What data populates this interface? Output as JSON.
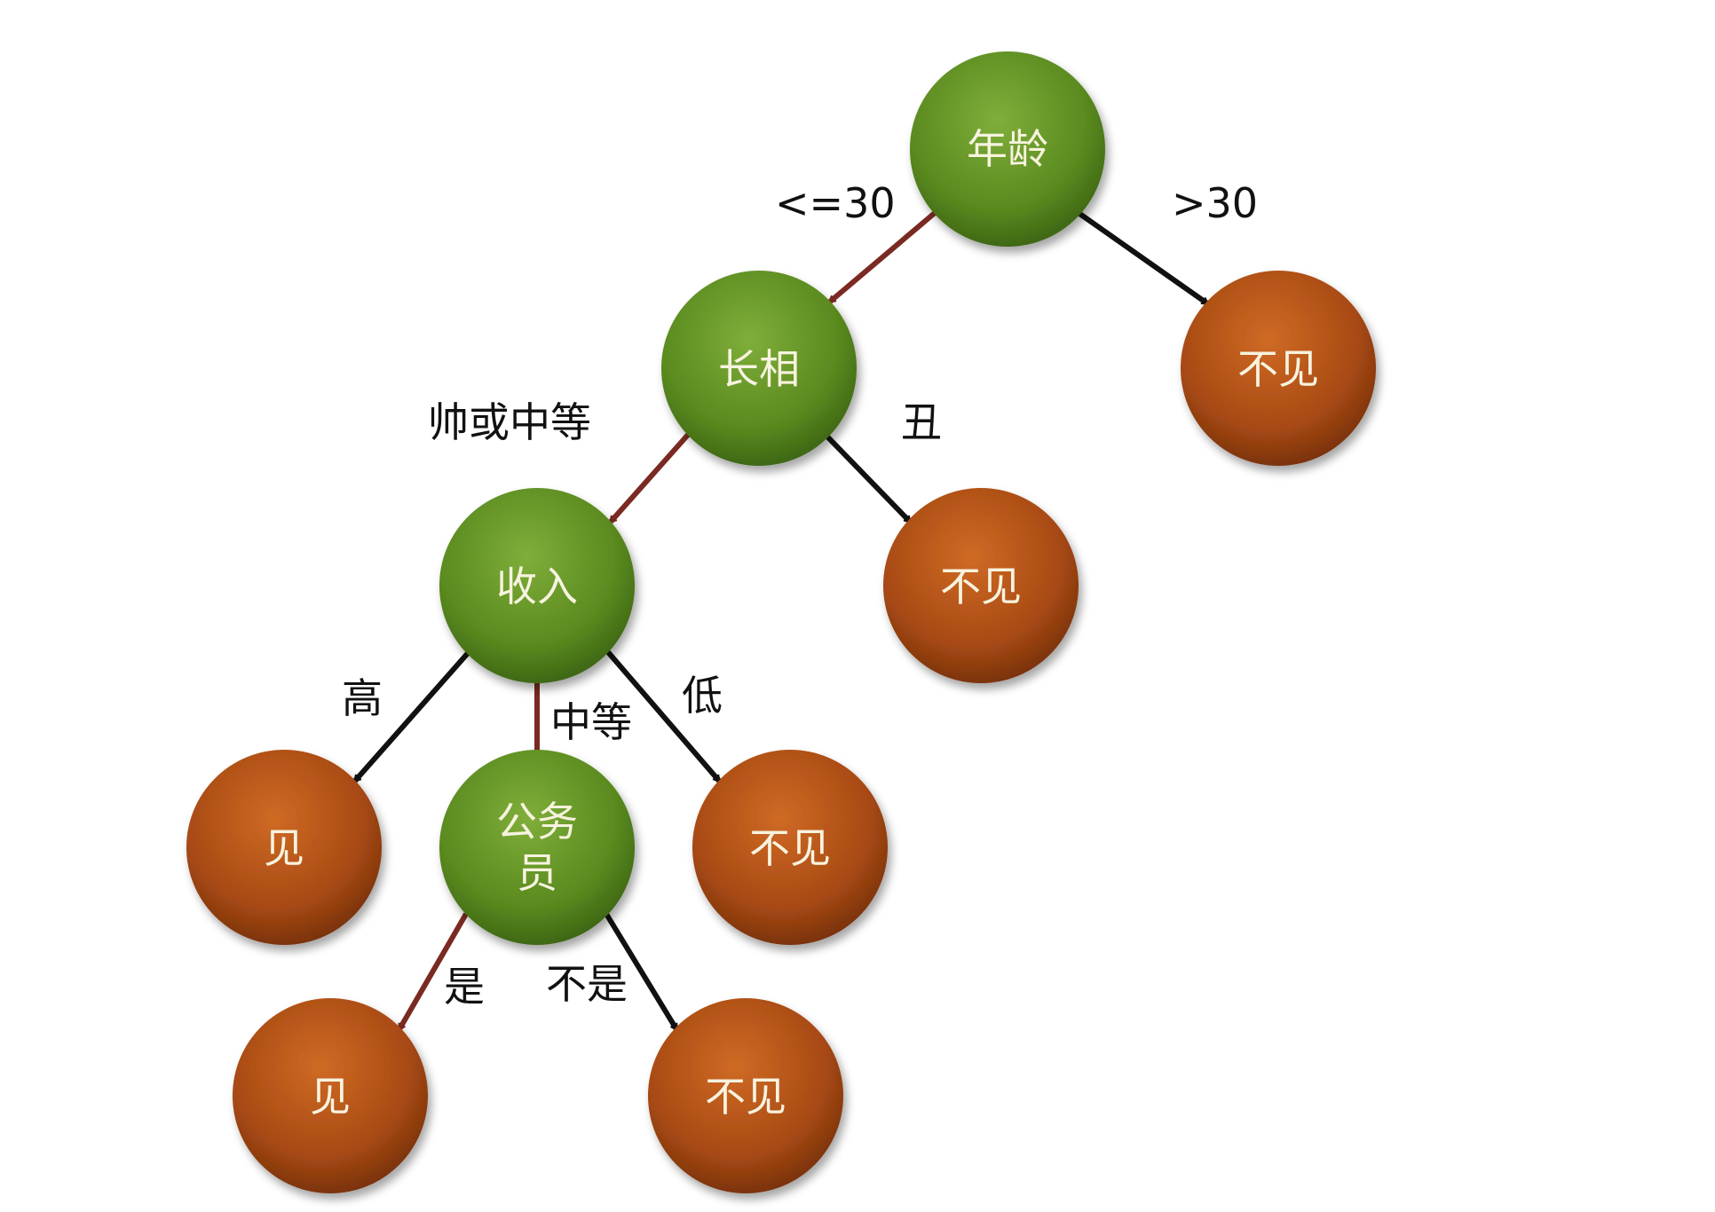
{
  "colors": {
    "decision_node": "#5f8f22",
    "leaf_node": "#b4501a",
    "path_arrow": "#7a2a22",
    "other_arrow": "#111111",
    "node_text": "#f7f3df",
    "edge_text": "#111111"
  },
  "nodes": {
    "age": {
      "label": "年龄",
      "type": "decision"
    },
    "looks": {
      "label": "长相",
      "type": "decision"
    },
    "leaf_age_gt30": {
      "label": "不见",
      "type": "leaf"
    },
    "income": {
      "label": "收入",
      "type": "decision"
    },
    "leaf_ugly": {
      "label": "不见",
      "type": "leaf"
    },
    "leaf_high": {
      "label": "见",
      "type": "leaf"
    },
    "civil_servant": {
      "label_line1": "公务",
      "label_line2": "员",
      "type": "decision"
    },
    "leaf_low": {
      "label": "不见",
      "type": "leaf"
    },
    "leaf_yes": {
      "label": "见",
      "type": "leaf"
    },
    "leaf_no": {
      "label": "不见",
      "type": "leaf"
    }
  },
  "edges": {
    "age_le30": {
      "label": "<=30"
    },
    "age_gt30": {
      "label": ">30"
    },
    "looks_good": {
      "label": "帅或中等"
    },
    "looks_ugly": {
      "label": "丑"
    },
    "income_high": {
      "label": "高"
    },
    "income_mid": {
      "label": "中等"
    },
    "income_low": {
      "label": "低"
    },
    "cs_yes": {
      "label": "是"
    },
    "cs_no": {
      "label": "不是"
    }
  }
}
